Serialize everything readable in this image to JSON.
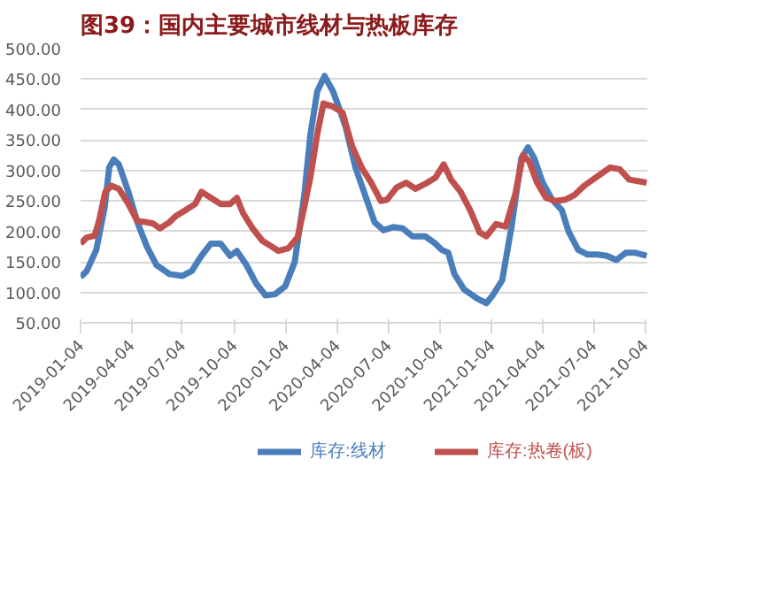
{
  "chart_data": {
    "type": "line",
    "title": "图39：国内主要城市线材与热板库存",
    "xlim": [
      "2019-01-04",
      "2021-10-08"
    ],
    "xticks": [
      "2019-01-04",
      "2019-04-04",
      "2019-07-04",
      "2019-10-04",
      "2020-01-04",
      "2020-04-04",
      "2020-07-04",
      "2020-10-04",
      "2021-01-04",
      "2021-04-04",
      "2021-07-04",
      "2021-10-04"
    ],
    "ylim": [
      50,
      500
    ],
    "yticks": [
      {
        "value": 50,
        "label": "50.00"
      },
      {
        "value": 100,
        "label": "100.00"
      },
      {
        "value": 150,
        "label": "150.00"
      },
      {
        "value": 200,
        "label": "200.00"
      },
      {
        "value": 250,
        "label": "250.00"
      },
      {
        "value": 300,
        "label": "300.00"
      },
      {
        "value": 350,
        "label": "350.00"
      },
      {
        "value": 400,
        "label": "400.00"
      },
      {
        "value": 450,
        "label": "450.00"
      },
      {
        "value": 500,
        "label": "500.00"
      }
    ],
    "grid": "y",
    "legend": "bottom",
    "marker": "none",
    "line_style": "solid",
    "series": [
      {
        "name": "库存:线材",
        "color": "#4a7ebb",
        "x": [
          "2019-01-04",
          "2019-01-15",
          "2019-02-01",
          "2019-02-16",
          "2019-02-24",
          "2019-03-04",
          "2019-03-13",
          "2019-03-30",
          "2019-04-15",
          "2019-05-02",
          "2019-05-19",
          "2019-06-11",
          "2019-07-04",
          "2019-07-21",
          "2019-08-07",
          "2019-08-24",
          "2019-09-10",
          "2019-09-27",
          "2019-10-09",
          "2019-10-26",
          "2019-11-12",
          "2019-11-29",
          "2019-12-16",
          "2020-01-03",
          "2020-01-20",
          "2020-02-06",
          "2020-02-17",
          "2020-02-29",
          "2020-03-13",
          "2020-03-28",
          "2020-04-09",
          "2020-04-20",
          "2020-05-07",
          "2020-05-24",
          "2020-06-10",
          "2020-06-26",
          "2020-07-13",
          "2020-07-30",
          "2020-08-16",
          "2020-09-08",
          "2020-09-26",
          "2020-10-07",
          "2020-10-19",
          "2020-10-30",
          "2020-11-16",
          "2020-12-09",
          "2020-12-26",
          "2021-01-06",
          "2021-01-23",
          "2021-02-09",
          "2021-02-26",
          "2021-03-10",
          "2021-03-21",
          "2021-04-05",
          "2021-04-22",
          "2021-05-09",
          "2021-05-21",
          "2021-06-07",
          "2021-06-24",
          "2021-07-11",
          "2021-07-28",
          "2021-08-14",
          "2021-08-31",
          "2021-09-17",
          "2021-10-07"
        ],
        "values": [
          125,
          135,
          170,
          240,
          305,
          318,
          310,
          265,
          215,
          175,
          145,
          130,
          127,
          135,
          160,
          180,
          180,
          160,
          168,
          145,
          115,
          95,
          97,
          110,
          150,
          260,
          360,
          430,
          455,
          430,
          400,
          370,
          305,
          260,
          215,
          202,
          207,
          205,
          192,
          192,
          180,
          170,
          165,
          130,
          105,
          90,
          82,
          95,
          120,
          210,
          320,
          338,
          320,
          280,
          252,
          235,
          200,
          170,
          162,
          162,
          160,
          153,
          165,
          165,
          160
        ]
      },
      {
        "name": "库存:热卷(板)",
        "color": "#c0504d",
        "x": [
          "2019-01-04",
          "2019-01-15",
          "2019-01-29",
          "2019-02-06",
          "2019-02-17",
          "2019-02-28",
          "2019-03-13",
          "2019-03-30",
          "2019-04-15",
          "2019-05-02",
          "2019-05-13",
          "2019-05-25",
          "2019-06-11",
          "2019-06-22",
          "2019-07-10",
          "2019-07-27",
          "2019-08-07",
          "2019-08-24",
          "2019-09-10",
          "2019-09-27",
          "2019-10-09",
          "2019-10-20",
          "2019-11-06",
          "2019-11-23",
          "2019-12-10",
          "2019-12-22",
          "2020-01-08",
          "2020-01-25",
          "2020-02-06",
          "2020-02-17",
          "2020-02-29",
          "2020-03-11",
          "2020-03-28",
          "2020-04-14",
          "2020-05-01",
          "2020-05-18",
          "2020-06-04",
          "2020-06-21",
          "2020-07-02",
          "2020-07-19",
          "2020-08-05",
          "2020-08-22",
          "2020-09-08",
          "2020-09-26",
          "2020-10-11",
          "2020-10-24",
          "2020-11-10",
          "2020-11-27",
          "2020-12-14",
          "2020-12-26",
          "2021-01-12",
          "2021-01-29",
          "2021-02-15",
          "2021-03-01",
          "2021-03-12",
          "2021-03-26",
          "2021-04-11",
          "2021-04-28",
          "2021-05-15",
          "2021-06-01",
          "2021-06-18",
          "2021-07-11",
          "2021-08-03",
          "2021-08-20",
          "2021-09-06",
          "2021-10-07"
        ],
        "values": [
          180,
          190,
          193,
          218,
          265,
          275,
          270,
          245,
          217,
          215,
          213,
          205,
          215,
          225,
          235,
          245,
          265,
          255,
          245,
          245,
          255,
          230,
          205,
          185,
          175,
          168,
          172,
          190,
          240,
          290,
          360,
          410,
          405,
          395,
          340,
          305,
          280,
          250,
          252,
          272,
          280,
          270,
          278,
          288,
          310,
          285,
          265,
          235,
          198,
          192,
          212,
          208,
          260,
          325,
          315,
          280,
          255,
          250,
          252,
          260,
          275,
          290,
          305,
          302,
          285,
          280
        ]
      }
    ]
  }
}
